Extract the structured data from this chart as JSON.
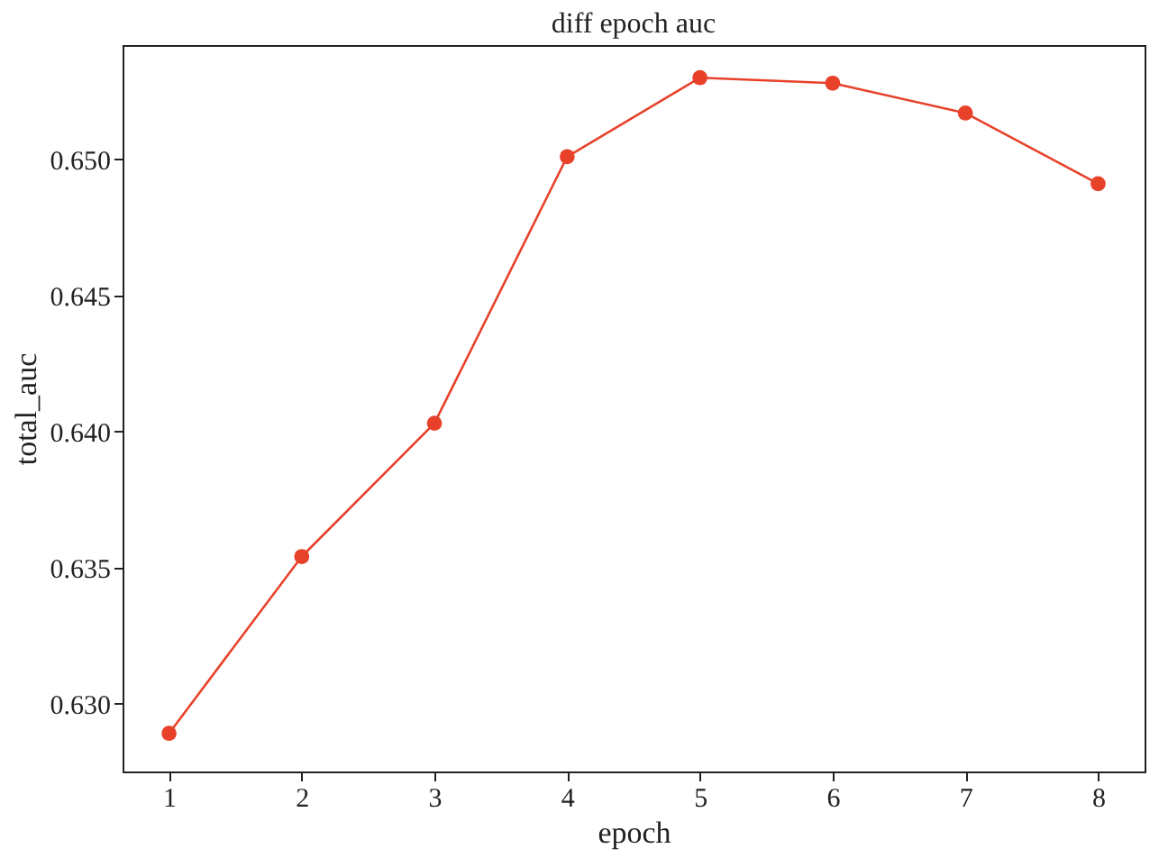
{
  "chart_data": {
    "type": "line",
    "title": "diff epoch auc",
    "xlabel": "epoch",
    "ylabel": "total_auc",
    "x": [
      1,
      2,
      3,
      4,
      5,
      6,
      7,
      8
    ],
    "series": [
      {
        "color": "#e8412a",
        "values": [
          0.6289,
          0.6354,
          0.6403,
          0.6501,
          0.653,
          0.6528,
          0.6517,
          0.6491
        ]
      }
    ],
    "xlim": [
      0.65,
      8.35
    ],
    "ylim": [
      0.6275,
      0.6542
    ],
    "xticks": [
      1,
      2,
      3,
      4,
      5,
      6,
      7,
      8
    ],
    "yticks": [
      {
        "value": 0.63,
        "label": "0.630"
      },
      {
        "value": 0.635,
        "label": "0.635"
      },
      {
        "value": 0.64,
        "label": "0.640"
      },
      {
        "value": 0.645,
        "label": "0.645"
      },
      {
        "value": 0.65,
        "label": "0.650"
      }
    ],
    "grid": false,
    "marker": "circle",
    "line_style": "solid"
  }
}
